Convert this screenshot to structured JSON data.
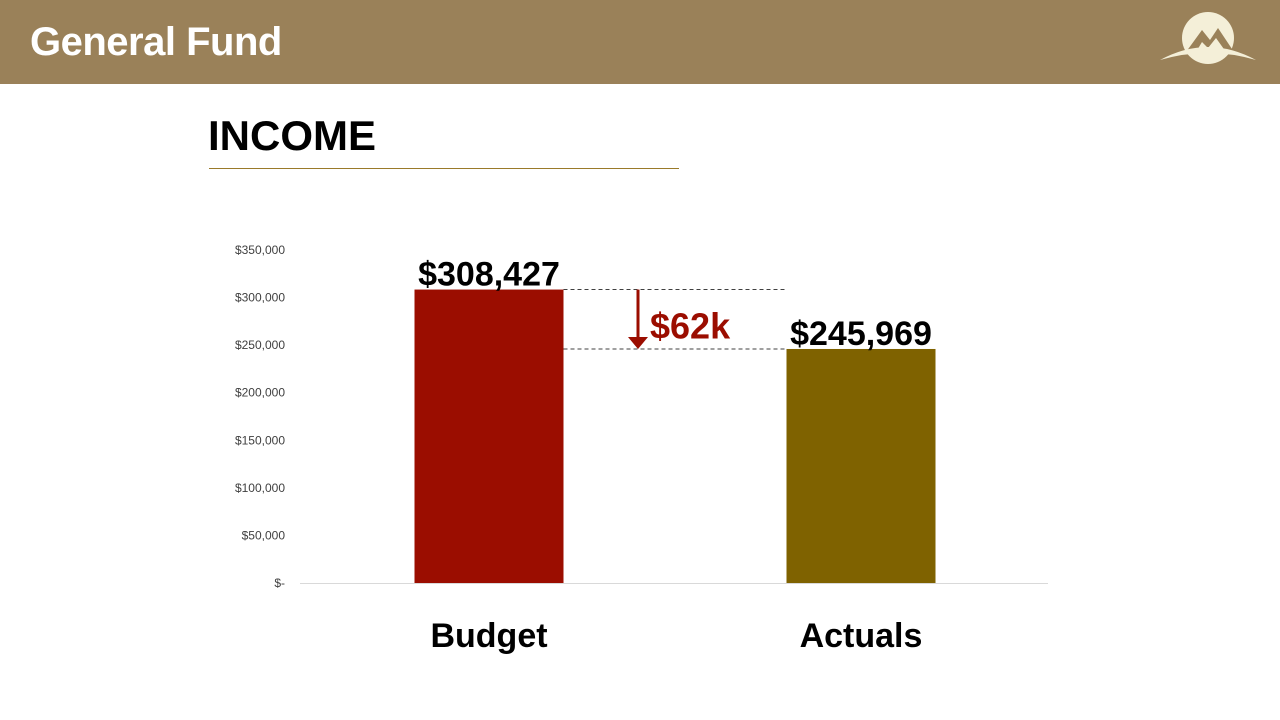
{
  "header": {
    "title": "General Fund"
  },
  "section": {
    "heading": "INCOME"
  },
  "logo_icon": "mountain-logo-icon",
  "colors": {
    "header_bg": "#9a8159",
    "budget": "#9b0d00",
    "actuals": "#7f6200",
    "variance": "#9b0d00",
    "rule": "#9a7a2a"
  },
  "chart_data": {
    "type": "bar",
    "categories": [
      "Budget",
      "Actuals"
    ],
    "values": [
      308427,
      245969
    ],
    "data_labels": [
      "$308,427",
      "$245,969"
    ],
    "ylim": [
      0,
      350000
    ],
    "y_ticks": [
      0,
      50000,
      100000,
      150000,
      200000,
      250000,
      300000,
      350000
    ],
    "y_tick_labels": [
      "$-",
      "$50,000",
      "$100,000",
      "$150,000",
      "$200,000",
      "$250,000",
      "$300,000",
      "$350,000"
    ],
    "grid": false,
    "variance_label": "$62k"
  }
}
